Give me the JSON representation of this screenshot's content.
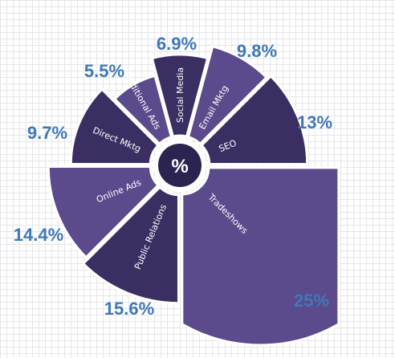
{
  "chart_data": {
    "type": "pie",
    "center_label": "%",
    "categories": [
      "SEO",
      "Tradeshows",
      "Public Relations",
      "Online Ads",
      "Direct Mktg",
      "Traditional Ads",
      "Social Media",
      "Email Mktg"
    ],
    "values": [
      13,
      25,
      15.6,
      14.4,
      9.7,
      5.5,
      6.9,
      9.8
    ],
    "value_labels": [
      "13%",
      "25%",
      "15.6%",
      "14.4%",
      "9.7%",
      "5.5%",
      "6.9%",
      "9.8%"
    ],
    "colors": [
      "#3a2e63",
      "#5b4a8c",
      "#3a2e63",
      "#5b4a8c",
      "#3a2e63",
      "#5b4a8c",
      "#3a2e63",
      "#5b4a8c"
    ],
    "label_color": "#3f78b8"
  }
}
